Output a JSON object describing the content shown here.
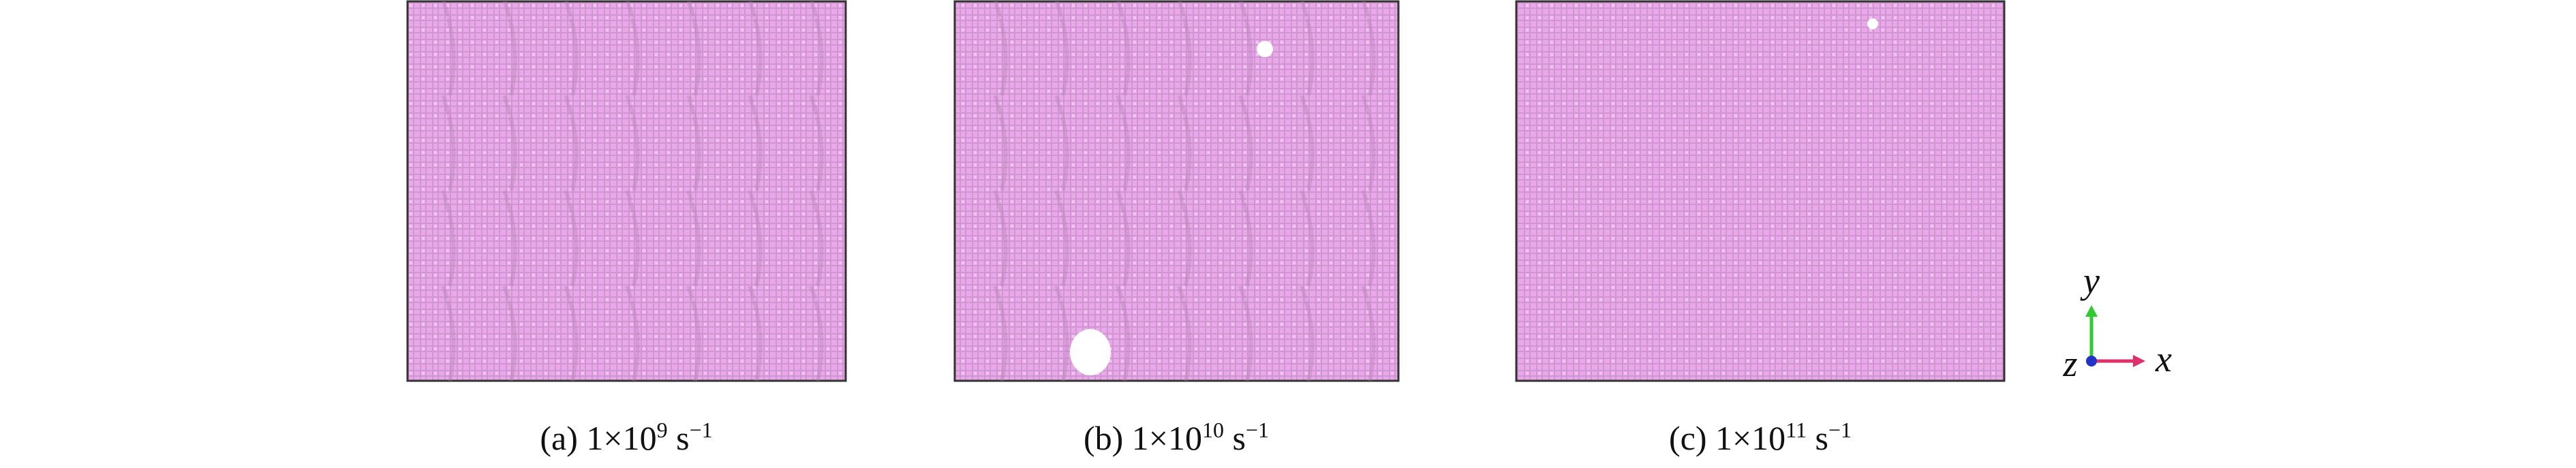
{
  "panels": [
    {
      "label": "(a) 1×10",
      "exponent": "9",
      "unit": "s",
      "unit_exponent": "−1"
    },
    {
      "label": "(b) 1×10",
      "exponent": "10",
      "unit": "s",
      "unit_exponent": "−1"
    },
    {
      "label": "(c) 1×10",
      "exponent": "11",
      "unit": "s",
      "unit_exponent": "−1"
    }
  ],
  "axes": {
    "x": "x",
    "y": "y",
    "z": "z"
  }
}
